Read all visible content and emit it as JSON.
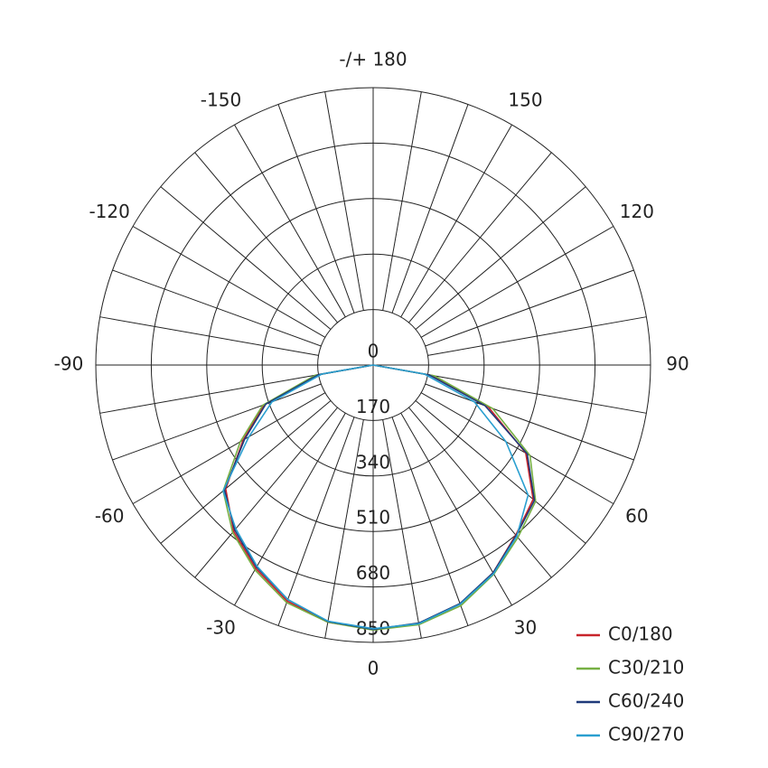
{
  "chart_data": {
    "type": "polar",
    "x": [
      -90,
      -80,
      -70,
      -60,
      -50,
      -40,
      -30,
      -20,
      -10,
      0,
      10,
      20,
      30,
      40,
      50,
      60,
      70,
      80,
      90
    ],
    "series": [
      {
        "name": "C0/180",
        "color": "#c8242b",
        "values": [
          0,
          175,
          355,
          460,
          590,
          665,
          720,
          770,
          800,
          810,
          805,
          780,
          735,
          680,
          640,
          540,
          375,
          185,
          0
        ]
      },
      {
        "name": "C30/210",
        "color": "#76b043",
        "values": [
          0,
          180,
          360,
          470,
          600,
          670,
          725,
          775,
          800,
          812,
          808,
          785,
          740,
          690,
          650,
          555,
          390,
          190,
          0
        ]
      },
      {
        "name": "C60/240",
        "color": "#1f3a7a",
        "values": [
          0,
          170,
          350,
          455,
          595,
          660,
          715,
          765,
          798,
          810,
          803,
          778,
          735,
          682,
          645,
          545,
          365,
          175,
          0
        ]
      },
      {
        "name": "C90/270",
        "color": "#2a9fd0",
        "values": [
          0,
          160,
          330,
          440,
          600,
          655,
          712,
          765,
          797,
          808,
          805,
          780,
          738,
          685,
          620,
          470,
          330,
          160,
          0
        ]
      }
    ],
    "rlim": [
      0,
      850
    ],
    "rticks": [
      0,
      170,
      340,
      510,
      680,
      850
    ],
    "angle_ticks": [
      0,
      30,
      60,
      90,
      120,
      150,
      {
        "value": 180,
        "label": "-/+ 180"
      },
      -150,
      -120,
      -90,
      -60,
      -30
    ],
    "grid": true,
    "legend": "lower right"
  }
}
